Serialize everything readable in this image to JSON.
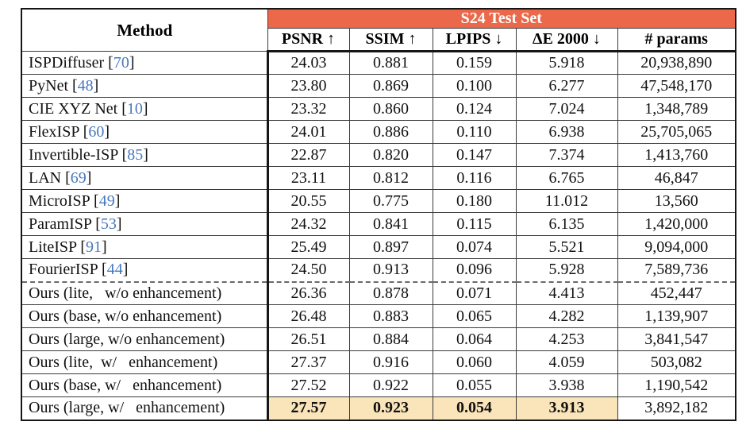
{
  "table": {
    "title": "S24 Test Set",
    "method_header": "Method",
    "columns": [
      "PSNR ↑",
      "SSIM ↑",
      "LPIPS ↓",
      "ΔE 2000 ↓",
      "# params"
    ],
    "colors": {
      "header_bg": "#ec684a",
      "header_text": "#ffffff",
      "highlight_bg": "#fae5bb",
      "citation_blue": "#4778be"
    },
    "rows": [
      {
        "method_segments": [
          {
            "text": "ISPDiffuser [",
            "style": "text"
          },
          {
            "text": "70",
            "style": "cite"
          },
          {
            "text": "]",
            "style": "text"
          }
        ],
        "values": [
          "24.03",
          "0.881",
          "0.159",
          "5.918",
          "20,938,890"
        ],
        "section_break_before": false,
        "highlight_metrics": false
      },
      {
        "method_segments": [
          {
            "text": "PyNet [",
            "style": "text"
          },
          {
            "text": "48",
            "style": "cite"
          },
          {
            "text": "]",
            "style": "text"
          }
        ],
        "values": [
          "23.80",
          "0.869",
          "0.100",
          "6.277",
          "47,548,170"
        ],
        "section_break_before": false,
        "highlight_metrics": false
      },
      {
        "method_segments": [
          {
            "text": "CIE XYZ Net [",
            "style": "text"
          },
          {
            "text": "10",
            "style": "cite"
          },
          {
            "text": "]",
            "style": "text"
          }
        ],
        "values": [
          "23.32",
          "0.860",
          "0.124",
          "7.024",
          "1,348,789"
        ],
        "section_break_before": false,
        "highlight_metrics": false
      },
      {
        "method_segments": [
          {
            "text": "FlexISP [",
            "style": "text"
          },
          {
            "text": "60",
            "style": "cite"
          },
          {
            "text": "]",
            "style": "text"
          }
        ],
        "values": [
          "24.01",
          "0.886",
          "0.110",
          "6.938",
          "25,705,065"
        ],
        "section_break_before": false,
        "highlight_metrics": false
      },
      {
        "method_segments": [
          {
            "text": "Invertible-ISP [",
            "style": "text"
          },
          {
            "text": "85",
            "style": "cite"
          },
          {
            "text": "]",
            "style": "text"
          }
        ],
        "values": [
          "22.87",
          "0.820",
          "0.147",
          "7.374",
          "1,413,760"
        ],
        "section_break_before": false,
        "highlight_metrics": false
      },
      {
        "method_segments": [
          {
            "text": "LAN [",
            "style": "text"
          },
          {
            "text": "69",
            "style": "cite"
          },
          {
            "text": "]",
            "style": "text"
          }
        ],
        "values": [
          "23.11",
          "0.812",
          "0.116",
          "6.765",
          "46,847"
        ],
        "section_break_before": false,
        "highlight_metrics": false
      },
      {
        "method_segments": [
          {
            "text": "MicroISP [",
            "style": "text"
          },
          {
            "text": "49",
            "style": "cite"
          },
          {
            "text": "]",
            "style": "text"
          }
        ],
        "values": [
          "20.55",
          "0.775",
          "0.180",
          "11.012",
          "13,560"
        ],
        "section_break_before": false,
        "highlight_metrics": false
      },
      {
        "method_segments": [
          {
            "text": "ParamISP [",
            "style": "text"
          },
          {
            "text": "53",
            "style": "cite"
          },
          {
            "text": "]",
            "style": "text"
          }
        ],
        "values": [
          "24.32",
          "0.841",
          "0.115",
          "6.135",
          "1,420,000"
        ],
        "section_break_before": false,
        "highlight_metrics": false
      },
      {
        "method_segments": [
          {
            "text": "LiteISP [",
            "style": "text"
          },
          {
            "text": "91",
            "style": "cite"
          },
          {
            "text": "]",
            "style": "text"
          }
        ],
        "values": [
          "25.49",
          "0.897",
          "0.074",
          "5.521",
          "9,094,000"
        ],
        "section_break_before": false,
        "highlight_metrics": false
      },
      {
        "method_segments": [
          {
            "text": "FourierISP [",
            "style": "text"
          },
          {
            "text": "44",
            "style": "cite"
          },
          {
            "text": "]",
            "style": "text"
          }
        ],
        "values": [
          "24.50",
          "0.913",
          "0.096",
          "5.928",
          "7,589,736"
        ],
        "section_break_before": false,
        "highlight_metrics": false
      },
      {
        "method_segments": [
          {
            "text": "Ours (lite,   w/o enhancement)",
            "style": "text"
          }
        ],
        "values": [
          "26.36",
          "0.878",
          "0.071",
          "4.413",
          "452,447"
        ],
        "section_break_before": true,
        "highlight_metrics": false
      },
      {
        "method_segments": [
          {
            "text": "Ours (base, w/o enhancement)",
            "style": "text"
          }
        ],
        "values": [
          "26.48",
          "0.883",
          "0.065",
          "4.282",
          "1,139,907"
        ],
        "section_break_before": false,
        "highlight_metrics": false
      },
      {
        "method_segments": [
          {
            "text": "Ours (large, w/o enhancement)",
            "style": "text"
          }
        ],
        "values": [
          "26.51",
          "0.884",
          "0.064",
          "4.253",
          "3,841,547"
        ],
        "section_break_before": false,
        "highlight_metrics": false
      },
      {
        "method_segments": [
          {
            "text": "Ours (lite,  w/   enhancement)",
            "style": "text"
          }
        ],
        "values": [
          "27.37",
          "0.916",
          "0.060",
          "4.059",
          "503,082"
        ],
        "section_break_before": false,
        "highlight_metrics": false
      },
      {
        "method_segments": [
          {
            "text": "Ours (base, w/   enhancement)",
            "style": "text"
          }
        ],
        "values": [
          "27.52",
          "0.922",
          "0.055",
          "3.938",
          "1,190,542"
        ],
        "section_break_before": false,
        "highlight_metrics": false
      },
      {
        "method_segments": [
          {
            "text": "Ours (large, w/   enhancement)",
            "style": "text"
          }
        ],
        "values": [
          "27.57",
          "0.923",
          "0.054",
          "3.913",
          "3,892,182"
        ],
        "section_break_before": false,
        "highlight_metrics": true
      }
    ]
  }
}
